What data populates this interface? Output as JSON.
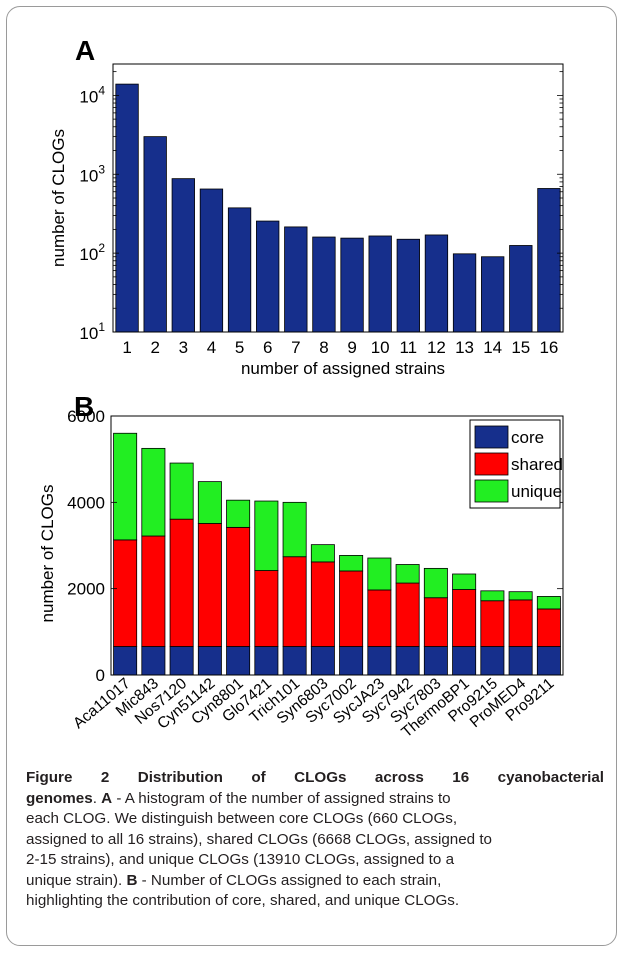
{
  "chart_data": [
    {
      "panel_label": "A",
      "type": "bar",
      "xlabel": "number of assigned strains",
      "ylabel": "number of CLOGs",
      "yscale": "log",
      "ylim": [
        10,
        25000
      ],
      "yticks": [
        {
          "value": 10,
          "base": "10",
          "exp": "1"
        },
        {
          "value": 100,
          "base": "10",
          "exp": "2"
        },
        {
          "value": 1000,
          "base": "10",
          "exp": "3"
        },
        {
          "value": 10000,
          "base": "10",
          "exp": "4"
        }
      ],
      "categories": [
        "1",
        "2",
        "3",
        "4",
        "5",
        "6",
        "7",
        "8",
        "9",
        "10",
        "11",
        "12",
        "13",
        "14",
        "15",
        "16"
      ],
      "values": [
        13900,
        3000,
        880,
        650,
        375,
        255,
        215,
        160,
        155,
        165,
        150,
        170,
        98,
        90,
        125,
        660
      ],
      "color": "#162f8c"
    },
    {
      "panel_label": "B",
      "type": "bar",
      "stacked": true,
      "ylabel": "number of CLOGs",
      "ylim": [
        0,
        6000
      ],
      "yticks": [
        "0",
        "2000",
        "4000",
        "6000"
      ],
      "categories": [
        "Aca11017",
        "Mic843",
        "Nos7120",
        "Cyn51142",
        "Cyn8801",
        "Glo7421",
        "Trich101",
        "Syn6803",
        "Syc7002",
        "SycJA23",
        "Syc7942",
        "Syc7803",
        "ThermoBP1",
        "Pro9215",
        "ProMED4",
        "Pro9211"
      ],
      "series": [
        {
          "name": "core",
          "color": "#162f8c",
          "values": [
            660,
            660,
            660,
            660,
            660,
            660,
            660,
            660,
            660,
            660,
            660,
            660,
            660,
            660,
            660,
            660
          ]
        },
        {
          "name": "shared",
          "color": "#ff0000",
          "values": [
            2470,
            2560,
            2950,
            2850,
            2760,
            1760,
            2080,
            1960,
            1750,
            1310,
            1470,
            1130,
            1320,
            1060,
            1080,
            870
          ]
        },
        {
          "name": "unique",
          "color": "#22ee22",
          "values": [
            2470,
            2030,
            1300,
            970,
            630,
            1610,
            1260,
            400,
            360,
            740,
            430,
            680,
            360,
            230,
            190,
            290
          ]
        }
      ],
      "legend_position": "top-right"
    }
  ],
  "caption": {
    "title": "Figure 2 Distribution of CLOGs across 16 cyanobacterial genomes",
    "lines": [
      {
        "bold": "genomes",
        "text": ". "
      },
      {
        "bold": "A",
        "text": " - A histogram of the number of assigned strains to"
      },
      {
        "text": "each CLOG. We distinguish between core CLOGs (660 CLOGs,"
      },
      {
        "text": "assigned to all 16 strains), shared CLOGs (6668 CLOGs, assigned to"
      },
      {
        "text": "2-15 strains), and unique CLOGs (13910 CLOGs, assigned to a"
      },
      {
        "text": "unique strain). "
      },
      {
        "bold": "B",
        "text": " - Number of CLOGs assigned to each strain,"
      },
      {
        "text": "highlighting the contribution of core, shared, and unique CLOGs."
      }
    ],
    "line1": "Figure 2 Distribution of CLOGs across 16 cyanobacterial",
    "line2_bold_a": "genomes",
    "line2_rest": ". ",
    "line2_bold_b": "A",
    "line2_text": " - A histogram of the number of assigned strains to",
    "line3": "each CLOG. We distinguish between core CLOGs (660 CLOGs,",
    "line4": "assigned to all 16 strains), shared CLOGs (6668 CLOGs, assigned to",
    "line5": "2-15 strains), and unique CLOGs (13910 CLOGs, assigned to a",
    "line6a": "unique strain). ",
    "line6_bold": "B",
    "line6b": " - Number of CLOGs assigned to each strain,",
    "line7": "highlighting the contribution of core, shared, and unique CLOGs."
  }
}
